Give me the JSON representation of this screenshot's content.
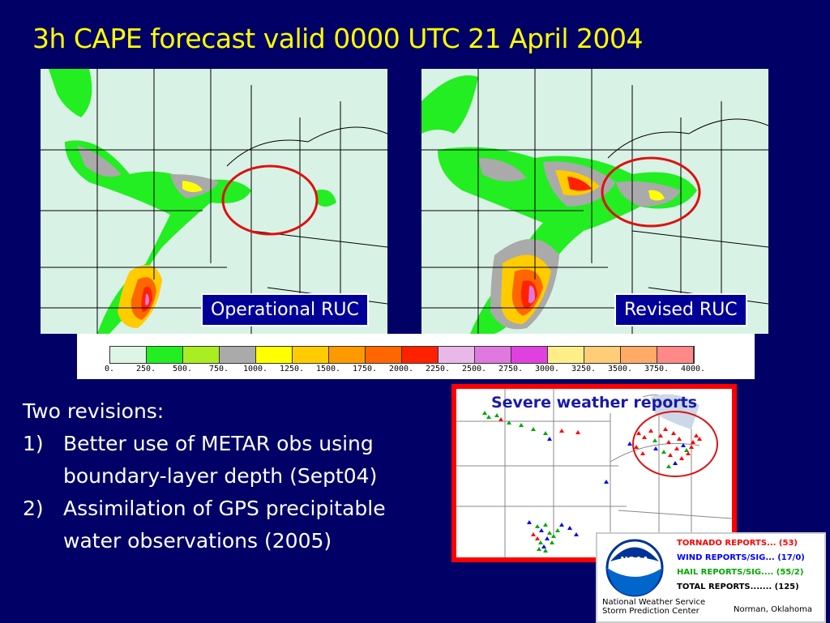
{
  "title": "3h CAPE forecast valid 0000 UTC 21 April 2004",
  "panels": [
    {
      "label": "Operational RUC",
      "circle_color": "#dd1111"
    },
    {
      "label": "Revised RUC",
      "circle_color": "#dd1111"
    }
  ],
  "color_scale": {
    "ticks": [
      "0.",
      "250.",
      "500.",
      "750.",
      "1000.",
      "1250.",
      "1500.",
      "1750.",
      "2000.",
      "2250.",
      "2500.",
      "2750.",
      "3000.",
      "3250.",
      "3500.",
      "3750.",
      "4000."
    ],
    "colors": [
      "#ddf5e4",
      "#22ee22",
      "#aaee22",
      "#aaaaaa",
      "#ffff00",
      "#ffcc00",
      "#ff9900",
      "#ff6600",
      "#ff2200",
      "#e8b8e8",
      "#e078e0",
      "#e040e0",
      "#ffee88",
      "#ffcc77",
      "#ffaa66",
      "#ff8888"
    ]
  },
  "revisions": {
    "heading": "Two revisions:",
    "items": [
      {
        "num": "1)",
        "line1": "Better use of METAR obs using",
        "line2": "boundary-layer depth  (Sept04)"
      },
      {
        "num": "2)",
        "line1": "Assimilation of GPS precipitable",
        "line2": "water observations (2005)"
      }
    ]
  },
  "reports": {
    "title": "Severe weather reports",
    "colors": {
      "tornado": "#ff0000",
      "wind": "#0000ff",
      "hail": "#00aa00"
    }
  },
  "spc": {
    "logo": "NOAA",
    "tornado": "TORNADO REPORTS... (53)",
    "wind": "WIND REPORTS/SIG... (17/0)",
    "hail": "HAIL REPORTS/SIG.... (55/2)",
    "total": "TOTAL REPORTS....... (125)",
    "org1": "National Weather Service",
    "org2": "Storm Prediction Center",
    "location": "Norman, Oklahoma"
  }
}
